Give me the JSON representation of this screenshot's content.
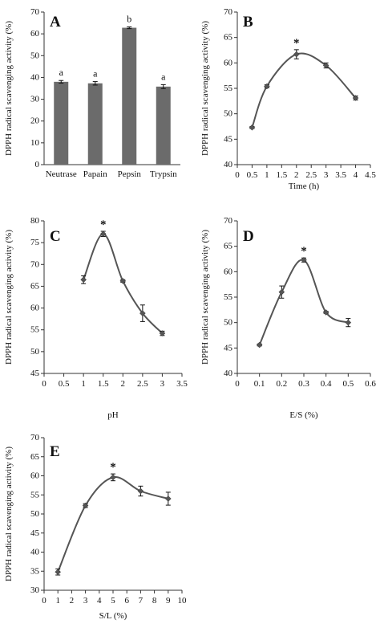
{
  "chart_data": [
    {
      "id": "A",
      "type": "bar",
      "panel_label": "A",
      "ylabel": "DPPH radical scavenging activity (%)",
      "xlabel": "",
      "ylim": [
        0,
        70
      ],
      "yticks": [
        0,
        10,
        20,
        30,
        40,
        50,
        60,
        70
      ],
      "categories": [
        "Neutrase",
        "Papain",
        "Pepsin",
        "Trypsin"
      ],
      "values": [
        38,
        37.3,
        62.8,
        35.8
      ],
      "errors": [
        0.6,
        0.8,
        0.4,
        0.9
      ],
      "letters": [
        "a",
        "a",
        "b",
        "a"
      ],
      "bar_color": "#6b6b6b"
    },
    {
      "id": "B",
      "type": "line",
      "panel_label": "B",
      "ylabel": "DPPH radical scavenging activity (%)",
      "xlabel": "Time (h)",
      "xlim": [
        0,
        4.5
      ],
      "ylim": [
        40,
        70
      ],
      "xticks": [
        0,
        0.5,
        1,
        1.5,
        2,
        2.5,
        3,
        3.5,
        4,
        4.5
      ],
      "xtick_labels": [
        "0",
        "0.5",
        "1",
        "1.5",
        "2",
        "2.5",
        "3",
        "3.5",
        "4",
        "4.5"
      ],
      "yticks": [
        40,
        45,
        50,
        55,
        60,
        65,
        70
      ],
      "x": [
        0.5,
        1,
        2,
        3,
        4
      ],
      "y": [
        47.3,
        55.4,
        61.7,
        59.5,
        53.1
      ],
      "errors": [
        0.2,
        0.3,
        0.9,
        0.5,
        0.4
      ],
      "star_x": 2,
      "star": "*",
      "line_color": "#555555"
    },
    {
      "id": "C",
      "type": "line",
      "panel_label": "C",
      "ylabel": "DPPH radical scavenging activity (%)",
      "xlabel": "pH",
      "xlim": [
        0,
        3.5
      ],
      "ylim": [
        45,
        80
      ],
      "xticks": [
        0,
        0.5,
        1,
        1.5,
        2,
        2.5,
        3,
        3.5
      ],
      "xtick_labels": [
        "0",
        "0.5",
        "1",
        "1.5",
        "2",
        "2.5",
        "3",
        "3.5"
      ],
      "yticks": [
        45,
        50,
        55,
        60,
        65,
        70,
        75,
        80
      ],
      "x": [
        1,
        1.5,
        2,
        2.5,
        3
      ],
      "y": [
        66.5,
        77,
        66.2,
        58.8,
        54.2
      ],
      "errors": [
        0.9,
        0.6,
        0.3,
        1.9,
        0.5
      ],
      "star_x": 1.5,
      "star": "*",
      "line_color": "#555555"
    },
    {
      "id": "D",
      "type": "line",
      "panel_label": "D",
      "ylabel": "DPPH radical scavenging activity (%)",
      "xlabel": "E/S (%)",
      "xlim": [
        0,
        0.6
      ],
      "ylim": [
        40,
        70
      ],
      "xticks": [
        0,
        0.1,
        0.2,
        0.3,
        0.4,
        0.5,
        0.6
      ],
      "xtick_labels": [
        "0",
        "0.1",
        "0.2",
        "0.3",
        "0.4",
        "0.5",
        "0.6"
      ],
      "yticks": [
        40,
        45,
        50,
        55,
        60,
        65,
        70
      ],
      "x": [
        0.1,
        0.2,
        0.3,
        0.4,
        0.5
      ],
      "y": [
        45.6,
        56,
        62.3,
        52,
        50
      ],
      "errors": [
        0.2,
        1.2,
        0.4,
        0.2,
        0.8
      ],
      "star_x": 0.3,
      "star": "*",
      "line_color": "#555555"
    },
    {
      "id": "E",
      "type": "line",
      "panel_label": "E",
      "ylabel": "DPPH radical scavenging activity (%)",
      "xlabel": "S/L (%)",
      "xlim": [
        0,
        10
      ],
      "ylim": [
        30,
        70
      ],
      "xticks": [
        0,
        1,
        2,
        3,
        4,
        5,
        6,
        7,
        8,
        9,
        10
      ],
      "xtick_labels": [
        "0",
        "1",
        "2",
        "3",
        "4",
        "5",
        "6",
        "7",
        "8",
        "9",
        "10"
      ],
      "yticks": [
        30,
        35,
        40,
        45,
        50,
        55,
        60,
        65,
        70
      ],
      "x": [
        1,
        3,
        5,
        7,
        9
      ],
      "y": [
        34.8,
        52.2,
        59.6,
        56,
        54
      ],
      "errors": [
        0.8,
        0.5,
        0.9,
        1.3,
        1.7
      ],
      "star_x": 5,
      "star": "*",
      "line_color": "#555555"
    }
  ]
}
